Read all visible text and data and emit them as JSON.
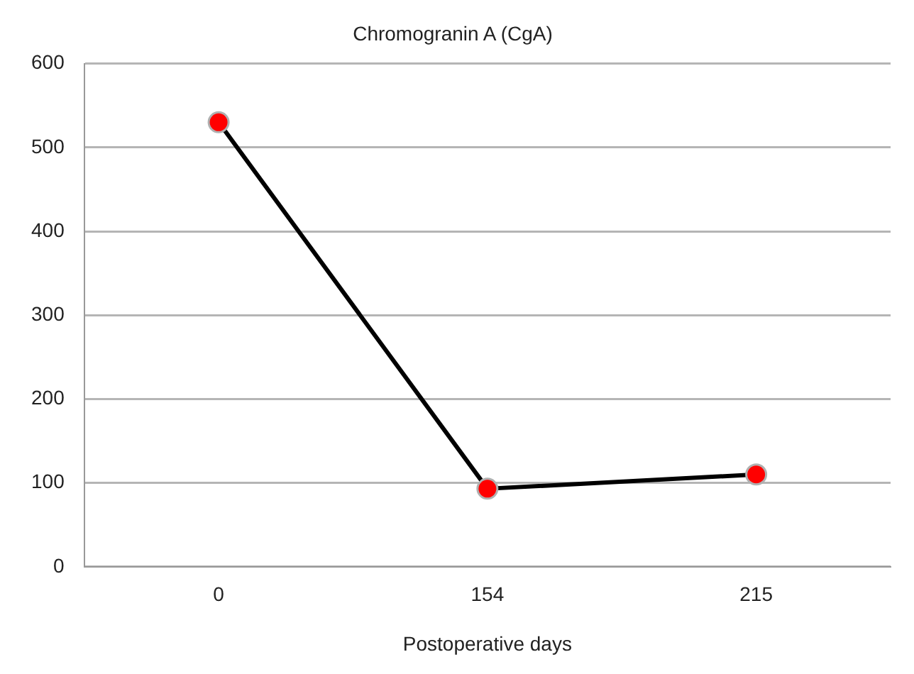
{
  "chart_data": {
    "type": "line",
    "title": "Chromogranin A (CgA)",
    "xlabel": "Postoperative days",
    "categories": [
      "0",
      "154",
      "215"
    ],
    "series": [
      {
        "color": "#ff0000",
        "values": [
          530,
          93,
          110
        ]
      }
    ],
    "ylim": [
      0,
      600
    ],
    "yticks": [
      0,
      100,
      200,
      300,
      400,
      500,
      600
    ],
    "grid": "y",
    "legend": false,
    "marker": "circle",
    "line_style": "solid"
  }
}
